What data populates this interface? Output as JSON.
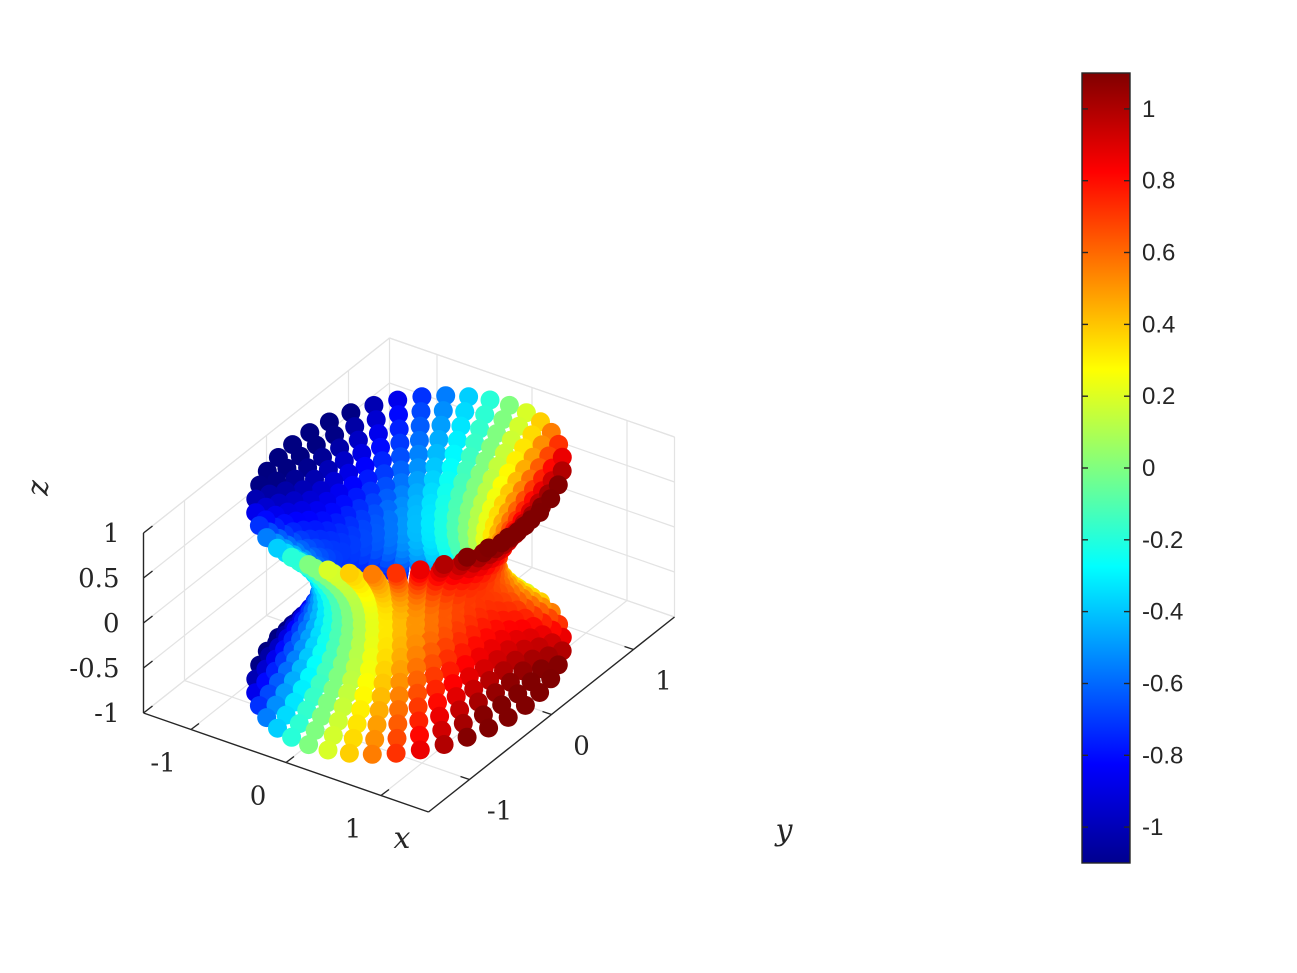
{
  "chart_data": {
    "type": "scatter",
    "subtype": "scatter3",
    "description_surface": "one-sheet hyperboloid x^2 + y^2 - z^2 = 0.5, points colored by x",
    "title": "",
    "xlabel": "x",
    "ylabel": "y",
    "zlabel": "z",
    "xlim": [
      -1.5,
      1.5
    ],
    "ylim": [
      -1.5,
      1.5
    ],
    "zlim": [
      -1,
      1
    ],
    "xticks": [
      {
        "value": -1,
        "label": "-1"
      },
      {
        "value": 0,
        "label": "0"
      },
      {
        "value": 1,
        "label": "1"
      }
    ],
    "yticks": [
      {
        "value": -1,
        "label": "-1"
      },
      {
        "value": 0,
        "label": "0"
      },
      {
        "value": 1,
        "label": "1"
      }
    ],
    "zticks": [
      {
        "value": -1,
        "label": "-1"
      },
      {
        "value": -0.5,
        "label": "-0.5"
      },
      {
        "value": 0,
        "label": "0"
      },
      {
        "value": 0.5,
        "label": "0.5"
      },
      {
        "value": 1,
        "label": "1"
      }
    ],
    "grid": true,
    "colormap": "jet",
    "color_variable": "x",
    "clim": [
      -1.1,
      1.1
    ],
    "colorbar": {
      "location": "right",
      "ticks": [
        {
          "value": 1,
          "label": "1"
        },
        {
          "value": 0.8,
          "label": "0.8"
        },
        {
          "value": 0.6,
          "label": "0.6"
        },
        {
          "value": 0.4,
          "label": "0.4"
        },
        {
          "value": 0.2,
          "label": "0.2"
        },
        {
          "value": 0,
          "label": "0"
        },
        {
          "value": -0.2,
          "label": "-0.2"
        },
        {
          "value": -0.4,
          "label": "-0.4"
        },
        {
          "value": -0.6,
          "label": "-0.6"
        },
        {
          "value": -0.8,
          "label": "-0.8"
        },
        {
          "value": -1,
          "label": "-1"
        }
      ]
    },
    "surface": {
      "equation": "x^2 + y^2 - z^2 = 0.5",
      "z_levels": [
        -1,
        -0.9,
        -0.8,
        -0.7,
        -0.6,
        -0.5,
        -0.4,
        -0.3,
        -0.2,
        -0.1,
        0,
        0.1,
        0.2,
        0.3,
        0.4,
        0.5,
        0.6,
        0.7,
        0.8,
        0.9,
        1
      ],
      "points_per_level": 40
    }
  }
}
